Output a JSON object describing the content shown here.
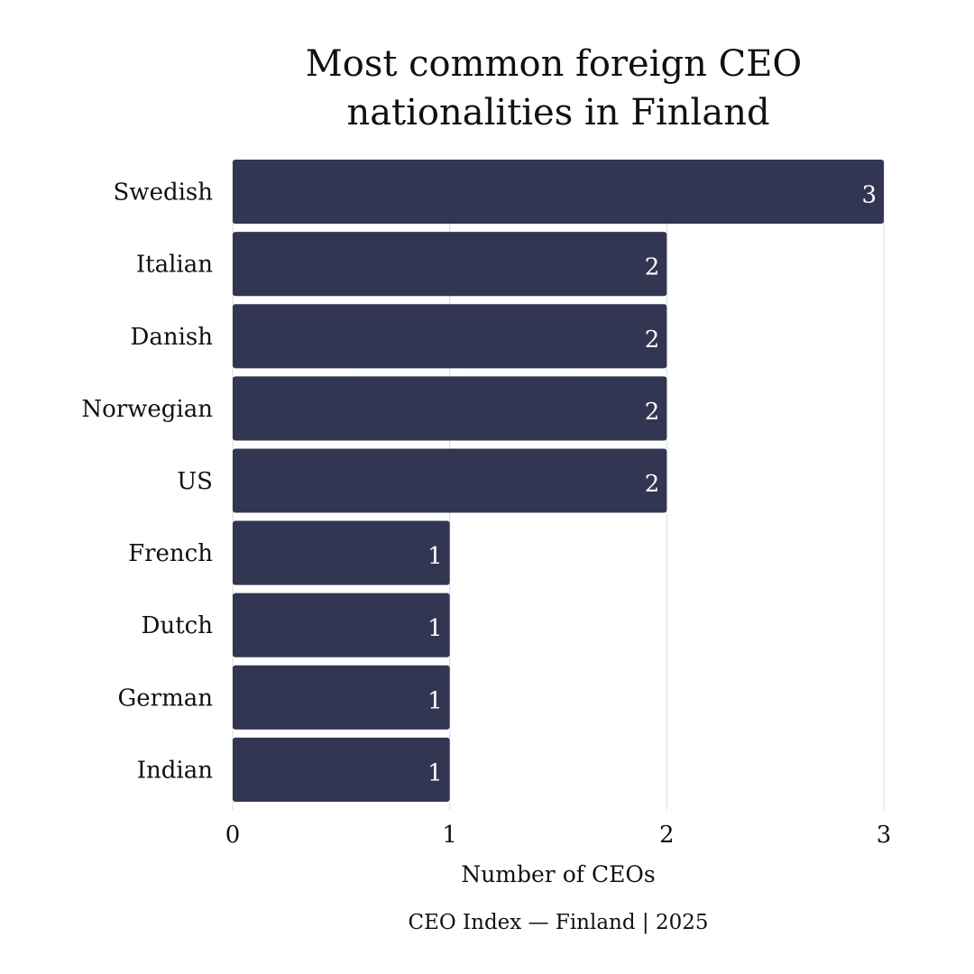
{
  "chart_data": {
    "type": "bar",
    "orientation": "horizontal",
    "title_lines": [
      "Most common foreign CEO",
      "nationalities in Finland"
    ],
    "categories": [
      "Swedish",
      "Italian",
      "Danish",
      "Norwegian",
      "US",
      "French",
      "Dutch",
      "German",
      "Indian"
    ],
    "values": [
      3,
      2,
      2,
      2,
      2,
      1,
      1,
      1,
      1
    ],
    "xlabel": "Number of CEOs",
    "ylabel": "",
    "xlim": [
      0,
      3
    ],
    "xticks": [
      0,
      1,
      2,
      3
    ],
    "grid": true,
    "bar_color": "#333652",
    "caption": "CEO Index — Finland | 2025"
  }
}
